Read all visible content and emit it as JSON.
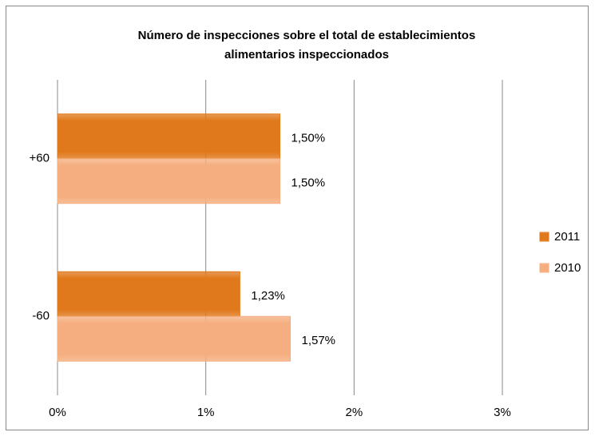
{
  "chart_data": {
    "type": "hbar",
    "title": [
      "Número de  inspecciones  sobre el total de establecimientos",
      "alimentarios inspeccionados"
    ],
    "categories": [
      "+60",
      "-60"
    ],
    "series": [
      {
        "name": "2011",
        "color": "#e0791c",
        "values": [
          1.5,
          1.23
        ],
        "value_labels": [
          "1,50%",
          "1,23%"
        ]
      },
      {
        "name": "2010",
        "color": "#f5ae7f",
        "values": [
          1.5,
          1.57
        ],
        "value_labels": [
          "1,50%",
          "1,57%"
        ]
      }
    ],
    "xlim": [
      0,
      3
    ],
    "xticks": [
      {
        "value": 0,
        "label": "0%"
      },
      {
        "value": 1,
        "label": "1%"
      },
      {
        "value": 2,
        "label": "2%"
      },
      {
        "value": 3,
        "label": "3%"
      }
    ],
    "grid": true,
    "legend": "right"
  }
}
